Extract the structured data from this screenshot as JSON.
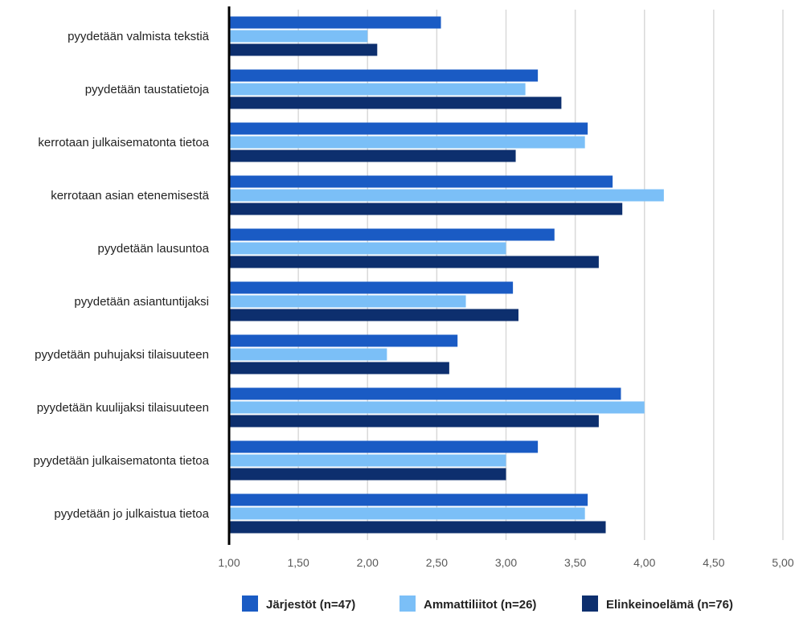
{
  "chart_data": {
    "type": "bar",
    "orientation": "horizontal",
    "categories": [
      "pyydetään valmista tekstiä",
      "pyydetään taustatietoja",
      "kerrotaan julkaisematonta tietoa",
      "kerrotaan asian etenemisestä",
      "pyydetään lausuntoa",
      "pyydetään asiantuntijaksi",
      "pyydetään puhujaksi tilaisuuteen",
      "pyydetään kuulijaksi tilaisuuteen",
      "pyydetään julkaisematonta tietoa",
      "pyydetään jo julkaistua tietoa"
    ],
    "series": [
      {
        "name": "Järjestöt (n=47)",
        "color": "#1a5bc4",
        "values": [
          2.53,
          3.23,
          3.59,
          3.77,
          3.35,
          3.05,
          2.65,
          3.83,
          3.23,
          3.59
        ]
      },
      {
        "name": "Ammattiliitot (n=26)",
        "color": "#7bbff7",
        "values": [
          2.0,
          3.14,
          3.57,
          4.14,
          3.0,
          2.71,
          2.14,
          4.0,
          3.0,
          3.57
        ]
      },
      {
        "name": "Elinkeinoelämä (n=76)",
        "color": "#0d2f6e",
        "values": [
          2.07,
          3.4,
          3.07,
          3.84,
          3.67,
          3.09,
          2.59,
          3.67,
          3.0,
          3.72
        ]
      }
    ],
    "xlim": [
      1.0,
      5.0
    ],
    "xticks": [
      "1,00",
      "1,50",
      "2,00",
      "2,50",
      "3,00",
      "3,50",
      "4,00",
      "4,50",
      "5,00"
    ],
    "grid": true,
    "legend_position": "bottom"
  }
}
